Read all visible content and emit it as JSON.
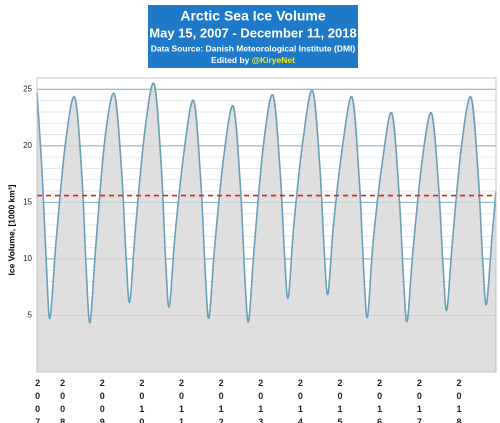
{
  "chart_data": {
    "type": "line",
    "title": "Arctic Sea Ice Volume",
    "subtitle": "May 15, 2007 - December 11, 2018",
    "source": "Data Source: Danish Meteorological Institute (DMI)",
    "credit_prefix": "Edited by",
    "credit_handle": "@KiryeNet",
    "y_label": "Ice Volume, [1000 km³]",
    "x": [
      2007.37,
      2007.5,
      2007.62,
      2007.7,
      2007.85,
      2008.08,
      2008.32,
      2008.5,
      2008.62,
      2008.71,
      2008.85,
      2009.08,
      2009.32,
      2009.5,
      2009.62,
      2009.71,
      2009.85,
      2010.08,
      2010.32,
      2010.5,
      2010.62,
      2010.71,
      2010.85,
      2011.08,
      2011.32,
      2011.5,
      2011.62,
      2011.71,
      2011.85,
      2012.08,
      2012.32,
      2012.5,
      2012.62,
      2012.71,
      2012.85,
      2013.08,
      2013.32,
      2013.5,
      2013.62,
      2013.71,
      2013.85,
      2014.08,
      2014.32,
      2014.5,
      2014.62,
      2014.71,
      2014.85,
      2015.08,
      2015.32,
      2015.5,
      2015.62,
      2015.71,
      2015.85,
      2016.08,
      2016.32,
      2016.5,
      2016.62,
      2016.71,
      2016.85,
      2017.08,
      2017.32,
      2017.5,
      2017.62,
      2017.71,
      2017.85,
      2018.08,
      2018.32,
      2018.5,
      2018.62,
      2018.71,
      2018.85,
      2018.95
    ],
    "series": [
      {
        "color": "#6a9fb8",
        "fill": "#d9d9d9",
        "values": [
          24.7,
          17.5,
          8.5,
          4.8,
          11.5,
          20.0,
          24.3,
          17.5,
          8.5,
          4.4,
          11.0,
          20.5,
          24.6,
          18.0,
          10.0,
          6.2,
          12.5,
          21.0,
          25.5,
          18.5,
          9.5,
          5.8,
          12.0,
          19.5,
          24.0,
          17.0,
          8.5,
          4.8,
          11.0,
          19.0,
          23.5,
          16.5,
          8.0,
          4.5,
          11.0,
          20.0,
          24.5,
          18.0,
          10.0,
          6.6,
          13.0,
          20.5,
          24.9,
          18.5,
          10.5,
          6.9,
          13.0,
          20.0,
          24.3,
          17.0,
          8.5,
          4.9,
          11.5,
          18.5,
          22.9,
          16.0,
          8.0,
          4.5,
          10.5,
          18.5,
          22.9,
          16.5,
          9.0,
          5.5,
          11.5,
          20.0,
          24.3,
          17.5,
          9.5,
          6.0,
          12.0,
          16.0
        ]
      }
    ],
    "reference_line": {
      "value": 15.6,
      "color": "#e02020"
    },
    "xlim": [
      2007.37,
      2018.95
    ],
    "xticks": [
      {
        "value": 2007.37,
        "label": "2007"
      },
      2008,
      2009,
      2010,
      2011,
      2012,
      2013,
      2014,
      2015,
      2016,
      2017,
      2018
    ],
    "ylim": [
      0,
      26
    ],
    "yticks": [
      5,
      10,
      15,
      20,
      25
    ],
    "minor_yticks": [
      1,
      2,
      3,
      4,
      6,
      7,
      8,
      9,
      11,
      12,
      13,
      14,
      16,
      17,
      18,
      19,
      21,
      22,
      23,
      24,
      26
    ],
    "grid": true,
    "header_color": "#1e7ac9",
    "handle_color": "#ffe600"
  }
}
